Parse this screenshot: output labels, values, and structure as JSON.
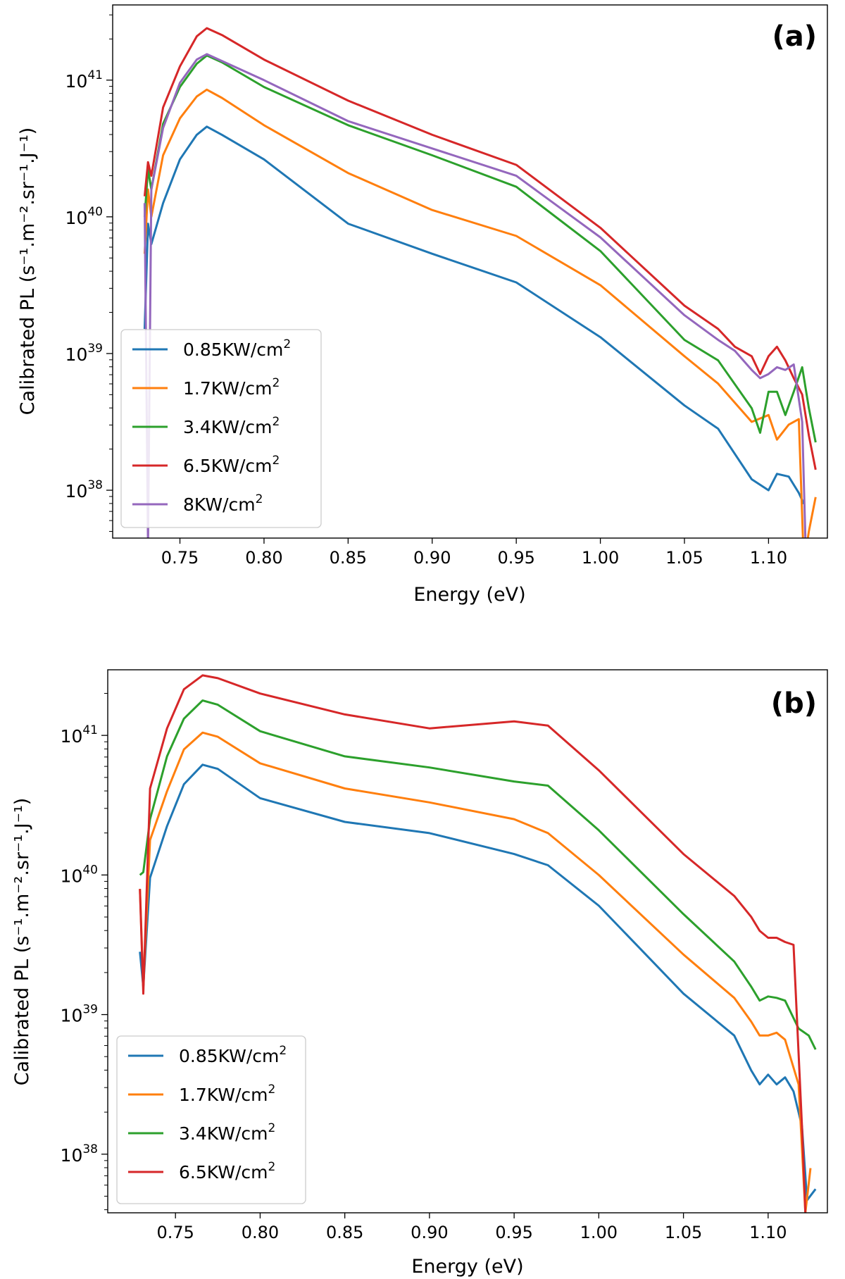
{
  "chart_data": [
    {
      "type": "line",
      "panel_label": "(a)",
      "xlabel": "Energy (eV)",
      "ylabel": "Calibrated PL (s⁻¹.m⁻².sr⁻¹.J⁻¹)",
      "xscale": "linear",
      "yscale": "log",
      "xlim": [
        0.71,
        1.135
      ],
      "ylim_log10": [
        37.65,
        41.55
      ],
      "xticks": [
        0.75,
        0.8,
        0.85,
        0.9,
        0.95,
        1.0,
        1.05,
        1.1
      ],
      "xtick_labels": [
        "0.75",
        "0.80",
        "0.85",
        "0.90",
        "0.95",
        "1.00",
        "1.05",
        "1.10"
      ],
      "yticks_log10": [
        38,
        39,
        40,
        41
      ],
      "ytick_labels": [
        "1038",
        "1039",
        "1040",
        "1041"
      ],
      "legend_position": "lower-left",
      "series": [
        {
          "name": "0.85KW/cm2",
          "color": "#1f77b4",
          "x": [
            0.729,
            0.731,
            0.733,
            0.74,
            0.75,
            0.76,
            0.766,
            0.775,
            0.8,
            0.85,
            0.9,
            0.95,
            1.0,
            1.05,
            1.07,
            1.09,
            1.1,
            1.105,
            1.112,
            1.118,
            1.121
          ],
          "log10y": [
            39.18,
            39.95,
            39.8,
            40.1,
            40.42,
            40.6,
            40.66,
            40.6,
            40.42,
            39.95,
            39.73,
            39.52,
            39.12,
            38.62,
            38.45,
            38.08,
            38.0,
            38.12,
            38.1,
            37.98,
            37.9
          ]
        },
        {
          "name": "1.7KW/cm2",
          "color": "#ff7f0e",
          "x": [
            0.729,
            0.731,
            0.733,
            0.74,
            0.75,
            0.76,
            0.766,
            0.775,
            0.8,
            0.85,
            0.9,
            0.95,
            1.0,
            1.05,
            1.07,
            1.09,
            1.1,
            1.105,
            1.112,
            1.118,
            1.121,
            1.124,
            1.128
          ],
          "log10y": [
            39.73,
            40.2,
            40.0,
            40.45,
            40.72,
            40.88,
            40.93,
            40.87,
            40.67,
            40.32,
            40.05,
            39.86,
            39.5,
            38.98,
            38.78,
            38.5,
            38.55,
            38.37,
            38.48,
            38.52,
            37.45,
            37.7,
            37.95
          ]
        },
        {
          "name": "3.4KW/cm2",
          "color": "#2ca02c",
          "x": [
            0.729,
            0.731,
            0.733,
            0.74,
            0.75,
            0.76,
            0.766,
            0.775,
            0.8,
            0.85,
            0.9,
            0.95,
            1.0,
            1.05,
            1.07,
            1.09,
            1.095,
            1.1,
            1.105,
            1.11,
            1.115,
            1.12,
            1.124,
            1.128
          ],
          "log10y": [
            40.0,
            40.35,
            40.2,
            40.68,
            40.95,
            41.12,
            41.18,
            41.13,
            40.95,
            40.67,
            40.45,
            40.22,
            39.75,
            39.1,
            38.95,
            38.6,
            38.42,
            38.72,
            38.72,
            38.55,
            38.72,
            38.9,
            38.6,
            38.35
          ]
        },
        {
          "name": "6.5KW/cm2",
          "color": "#d62728",
          "x": [
            0.729,
            0.731,
            0.733,
            0.74,
            0.75,
            0.76,
            0.766,
            0.775,
            0.8,
            0.85,
            0.9,
            0.95,
            1.0,
            1.05,
            1.07,
            1.08,
            1.09,
            1.095,
            1.1,
            1.105,
            1.11,
            1.115,
            1.12,
            1.124,
            1.128
          ],
          "log10y": [
            40.15,
            40.4,
            40.3,
            40.8,
            41.1,
            41.32,
            41.38,
            41.33,
            41.15,
            40.85,
            40.6,
            40.38,
            39.92,
            39.35,
            39.18,
            39.05,
            38.98,
            38.85,
            38.98,
            39.05,
            38.95,
            38.82,
            38.7,
            38.4,
            38.15
          ]
        },
        {
          "name": "8KW/cm2",
          "color": "#9467bd",
          "x": [
            0.729,
            0.731,
            0.733,
            0.74,
            0.75,
            0.76,
            0.766,
            0.775,
            0.8,
            0.85,
            0.9,
            0.95,
            1.0,
            1.05,
            1.07,
            1.08,
            1.09,
            1.095,
            1.1,
            1.105,
            1.11,
            1.115,
            1.12,
            1.122
          ],
          "log10y": [
            40.1,
            37.6,
            40.2,
            40.65,
            40.98,
            41.15,
            41.19,
            41.14,
            41.0,
            40.7,
            40.5,
            40.3,
            39.85,
            39.28,
            39.1,
            39.02,
            38.88,
            38.82,
            38.85,
            38.9,
            38.88,
            38.92,
            38.5,
            37.6
          ]
        }
      ]
    },
    {
      "type": "line",
      "panel_label": "(b)",
      "xlabel": "Energy (eV)",
      "ylabel": "Calibrated PL (s⁻¹.m⁻².sr⁻¹.J⁻¹)",
      "xscale": "linear",
      "yscale": "log",
      "xlim": [
        0.71,
        1.135
      ],
      "ylim_log10": [
        37.58,
        41.47
      ],
      "xticks": [
        0.75,
        0.8,
        0.85,
        0.9,
        0.95,
        1.0,
        1.05,
        1.1
      ],
      "xtick_labels": [
        "0.75",
        "0.80",
        "0.85",
        "0.90",
        "0.95",
        "1.00",
        "1.05",
        "1.10"
      ],
      "yticks_log10": [
        38,
        39,
        40,
        41
      ],
      "ytick_labels": [
        "1038",
        "1039",
        "1040",
        "1041"
      ],
      "legend_position": "lower-left",
      "series": [
        {
          "name": "0.85KW/cm2",
          "color": "#1f77b4",
          "x": [
            0.729,
            0.731,
            0.735,
            0.745,
            0.755,
            0.766,
            0.775,
            0.8,
            0.85,
            0.9,
            0.95,
            0.97,
            1.0,
            1.05,
            1.08,
            1.09,
            1.095,
            1.1,
            1.105,
            1.11,
            1.115,
            1.12,
            1.123,
            1.128
          ],
          "log10y": [
            39.45,
            39.2,
            39.98,
            40.35,
            40.65,
            40.79,
            40.76,
            40.55,
            40.38,
            40.3,
            40.15,
            40.07,
            39.78,
            39.15,
            38.85,
            38.6,
            38.5,
            38.57,
            38.5,
            38.55,
            38.45,
            38.2,
            37.67,
            37.75
          ]
        },
        {
          "name": "1.7KW/cm2",
          "color": "#ff7f0e",
          "x": [
            0.729,
            0.731,
            0.735,
            0.745,
            0.755,
            0.766,
            0.775,
            0.8,
            0.85,
            0.9,
            0.95,
            0.97,
            1.0,
            1.05,
            1.08,
            1.09,
            1.095,
            1.1,
            1.105,
            1.11,
            1.118,
            1.122,
            1.125
          ],
          "log10y": [
            39.9,
            39.2,
            40.25,
            40.6,
            40.9,
            41.02,
            40.99,
            40.8,
            40.62,
            40.52,
            40.4,
            40.3,
            40.0,
            39.43,
            39.12,
            38.95,
            38.85,
            38.85,
            38.87,
            38.82,
            38.5,
            37.58,
            37.9
          ]
        },
        {
          "name": "3.4KW/cm2",
          "color": "#2ca02c",
          "x": [
            0.729,
            0.731,
            0.735,
            0.745,
            0.755,
            0.766,
            0.775,
            0.8,
            0.85,
            0.9,
            0.95,
            0.97,
            1.0,
            1.05,
            1.08,
            1.09,
            1.095,
            1.1,
            1.105,
            1.11,
            1.118,
            1.124,
            1.128
          ],
          "log10y": [
            40.0,
            40.02,
            40.4,
            40.85,
            41.12,
            41.25,
            41.22,
            41.03,
            40.85,
            40.77,
            40.67,
            40.64,
            40.32,
            39.72,
            39.38,
            39.2,
            39.1,
            39.13,
            39.12,
            39.1,
            38.9,
            38.85,
            38.75
          ]
        },
        {
          "name": "6.5KW/cm2",
          "color": "#d62728",
          "x": [
            0.729,
            0.731,
            0.735,
            0.745,
            0.755,
            0.766,
            0.775,
            0.8,
            0.85,
            0.9,
            0.95,
            0.97,
            1.0,
            1.05,
            1.08,
            1.09,
            1.095,
            1.1,
            1.105,
            1.11,
            1.115,
            1.12,
            1.122
          ],
          "log10y": [
            39.9,
            39.15,
            40.62,
            41.05,
            41.33,
            41.43,
            41.41,
            41.3,
            41.15,
            41.05,
            41.1,
            41.07,
            40.75,
            40.15,
            39.85,
            39.7,
            39.6,
            39.55,
            39.55,
            39.52,
            39.5,
            38.2,
            37.58
          ]
        }
      ]
    }
  ]
}
